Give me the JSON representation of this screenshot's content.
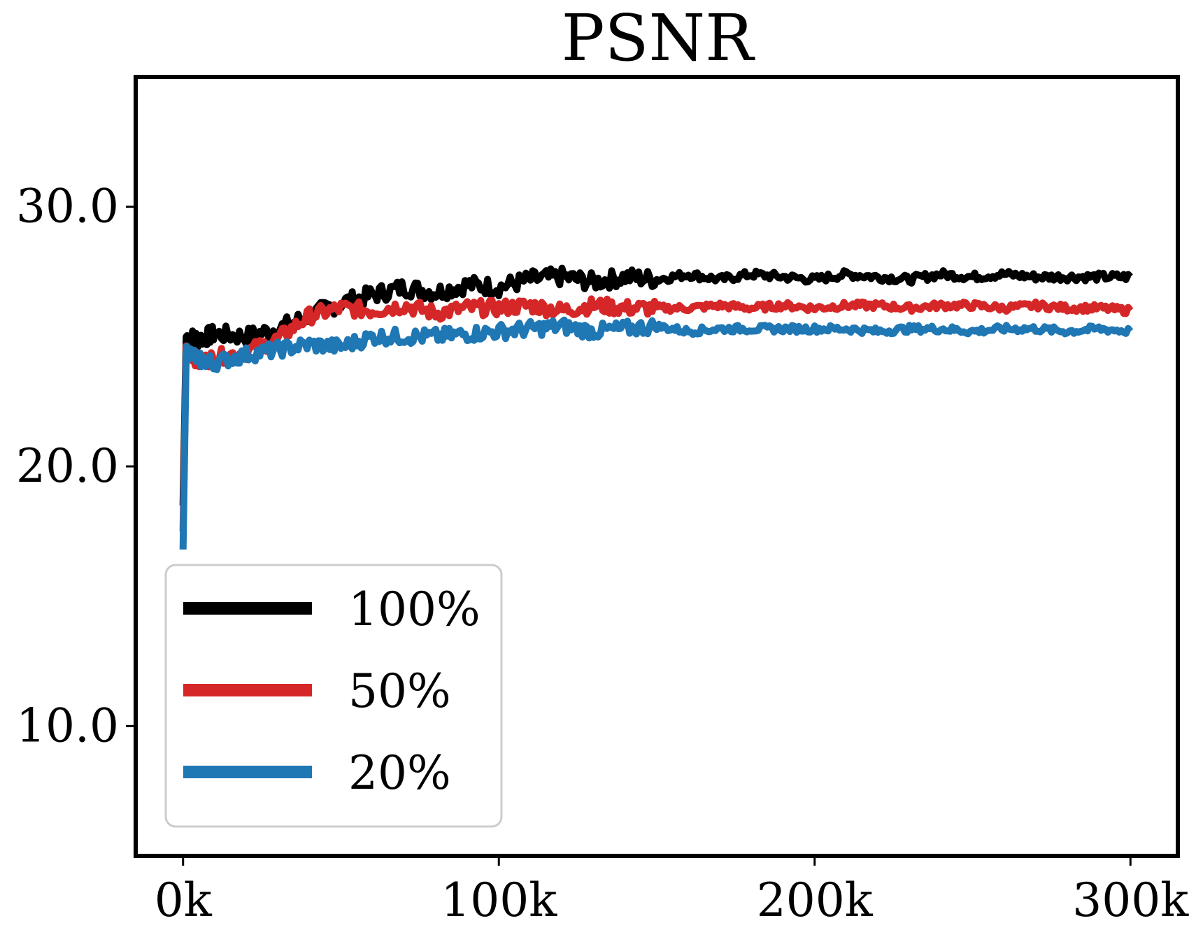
{
  "chart_data": {
    "type": "line",
    "title": "PSNR",
    "xlabel": "",
    "ylabel": "",
    "xlim": [
      -15000,
      315000
    ],
    "ylim": [
      5.0,
      35.0
    ],
    "x_ticks": [
      {
        "value": 0,
        "label": "0k"
      },
      {
        "value": 100000,
        "label": "100k"
      },
      {
        "value": 200000,
        "label": "200k"
      },
      {
        "value": 300000,
        "label": "300k"
      }
    ],
    "y_ticks": [
      {
        "value": 10.0,
        "label": "10.0"
      },
      {
        "value": 20.0,
        "label": "20.0"
      },
      {
        "value": 30.0,
        "label": "30.0"
      }
    ],
    "grid": false,
    "legend": {
      "placement": "lower-left"
    },
    "series": [
      {
        "name": "100%",
        "color": "#000000",
        "x": [
          0,
          1000,
          5000,
          10000,
          20000,
          30000,
          40000,
          50000,
          60000,
          70000,
          80000,
          90000,
          100000,
          110000,
          120000,
          130000,
          140000,
          150000,
          160000,
          170000,
          180000,
          190000,
          200000,
          210000,
          220000,
          230000,
          240000,
          250000,
          260000,
          270000,
          280000,
          290000,
          300000
        ],
        "y": [
          18.5,
          25.0,
          24.9,
          25.1,
          25.0,
          25.3,
          25.8,
          26.3,
          26.6,
          26.9,
          26.7,
          27.0,
          26.9,
          27.2,
          27.3,
          27.1,
          27.3,
          27.2,
          27.4,
          27.2,
          27.4,
          27.3,
          27.2,
          27.4,
          27.3,
          27.2,
          27.4,
          27.3,
          27.4,
          27.3,
          27.3,
          27.3,
          27.3
        ]
      },
      {
        "name": "50%",
        "color": "#d62728",
        "x": [
          0,
          1000,
          5000,
          10000,
          20000,
          30000,
          40000,
          50000,
          60000,
          70000,
          80000,
          90000,
          100000,
          110000,
          120000,
          130000,
          140000,
          150000,
          160000,
          170000,
          180000,
          190000,
          200000,
          210000,
          220000,
          230000,
          240000,
          250000,
          260000,
          270000,
          280000,
          290000,
          300000
        ],
        "y": [
          17.5,
          24.6,
          24.0,
          24.2,
          24.4,
          24.9,
          25.8,
          26.1,
          26.0,
          26.2,
          25.9,
          26.1,
          26.1,
          26.2,
          26.0,
          26.2,
          26.1,
          26.1,
          26.1,
          26.2,
          26.1,
          26.2,
          26.1,
          26.2,
          26.2,
          26.1,
          26.2,
          26.2,
          26.1,
          26.2,
          26.1,
          26.1,
          26.0
        ]
      },
      {
        "name": "20%",
        "color": "#1f77b4",
        "x": [
          0,
          1000,
          5000,
          10000,
          20000,
          30000,
          40000,
          50000,
          60000,
          70000,
          80000,
          90000,
          100000,
          110000,
          120000,
          130000,
          140000,
          150000,
          160000,
          170000,
          180000,
          190000,
          200000,
          210000,
          220000,
          230000,
          240000,
          250000,
          260000,
          270000,
          280000,
          290000,
          300000
        ],
        "y": [
          16.8,
          24.5,
          24.1,
          24.0,
          24.3,
          24.5,
          24.7,
          24.6,
          25.0,
          25.0,
          25.0,
          25.1,
          25.2,
          25.3,
          25.4,
          25.2,
          25.3,
          25.4,
          25.2,
          25.3,
          25.3,
          25.3,
          25.3,
          25.3,
          25.2,
          25.3,
          25.3,
          25.2,
          25.3,
          25.3,
          25.2,
          25.3,
          25.2
        ]
      }
    ]
  }
}
